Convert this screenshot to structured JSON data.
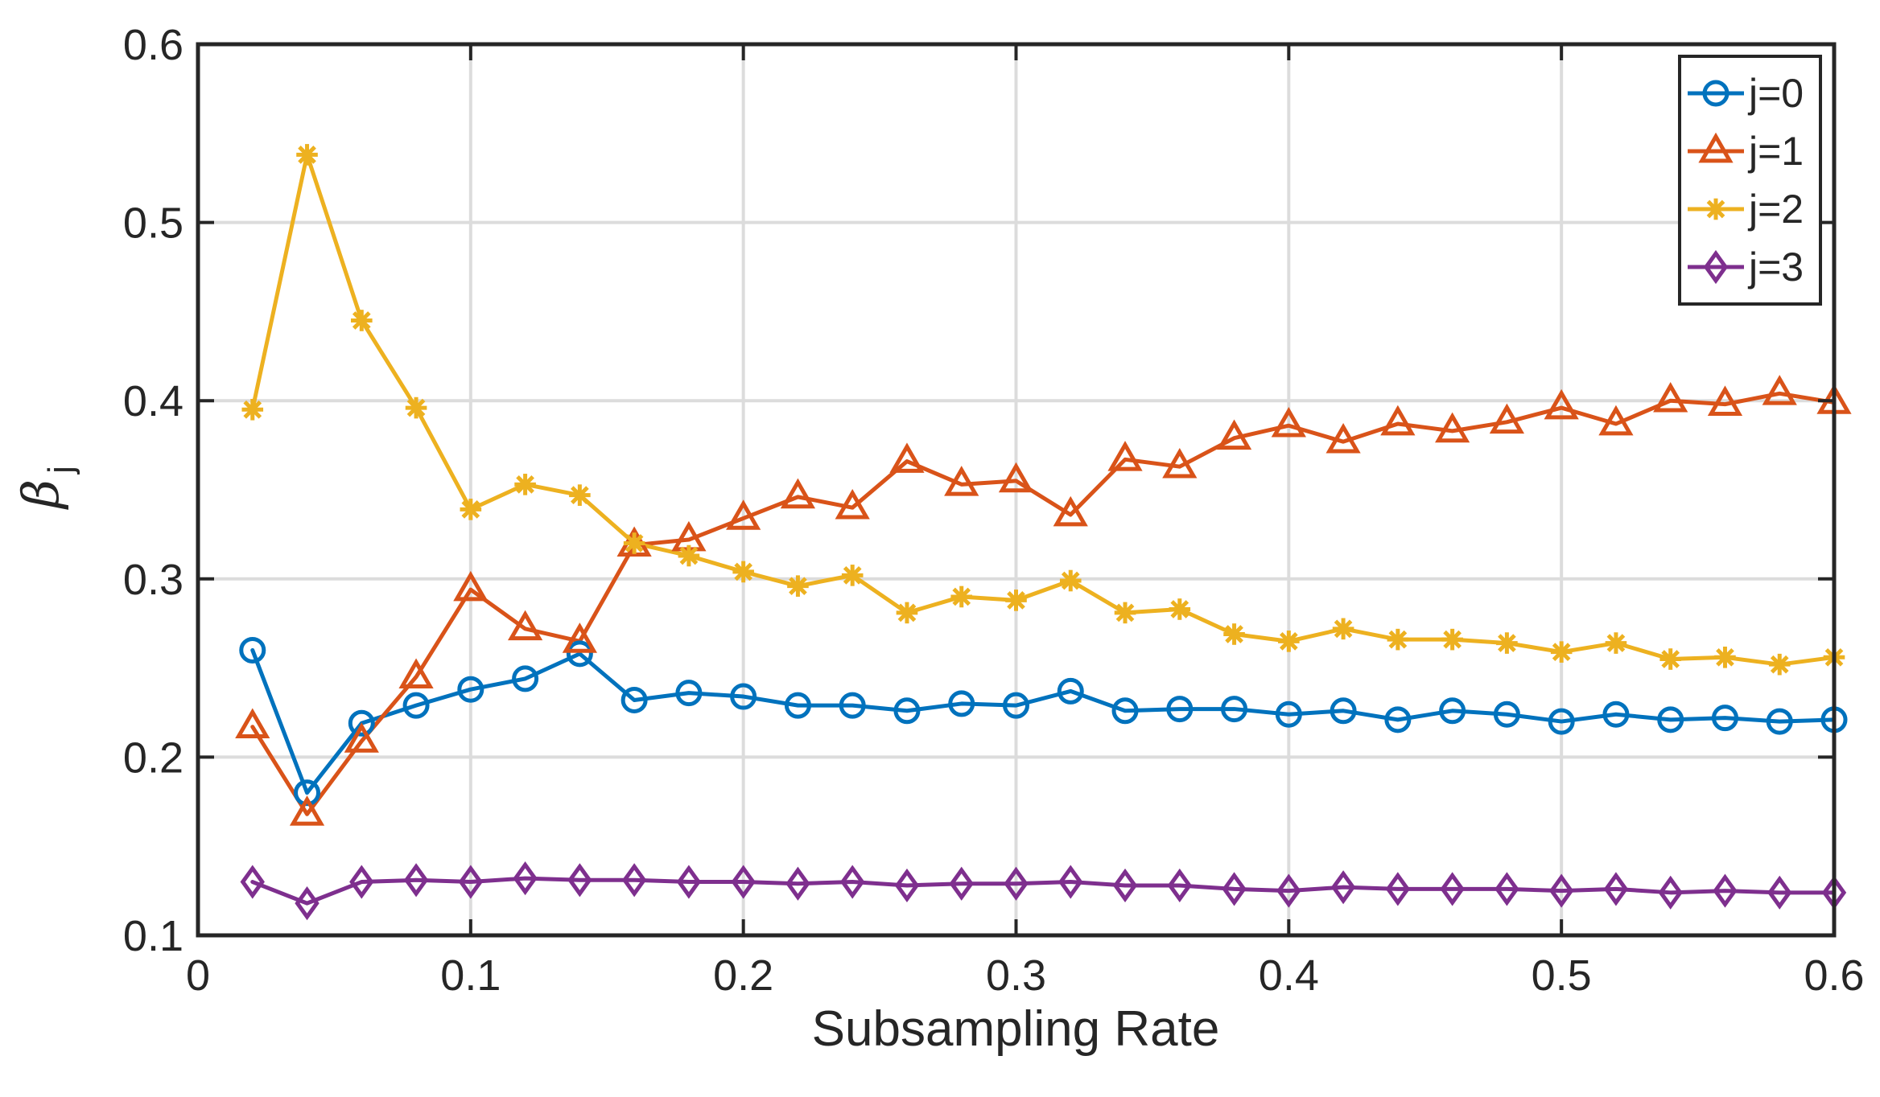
{
  "chart_data": {
    "type": "line",
    "xlabel": "Subsampling Rate",
    "ylabel_symbol": "β",
    "ylabel_subscript": "j",
    "xlim": [
      0,
      0.6
    ],
    "ylim": [
      0.1,
      0.6
    ],
    "xticks": [
      "0",
      "0.1",
      "0.2",
      "0.3",
      "0.4",
      "0.5",
      "0.6"
    ],
    "yticks": [
      "0.1",
      "0.2",
      "0.3",
      "0.4",
      "0.5",
      "0.6"
    ],
    "grid": true,
    "legend_position": "top-right",
    "x": [
      0.02,
      0.04,
      0.06,
      0.08,
      0.1,
      0.12,
      0.14,
      0.16,
      0.18,
      0.2,
      0.22,
      0.24,
      0.26,
      0.28,
      0.3,
      0.32,
      0.34,
      0.36,
      0.38,
      0.4,
      0.42,
      0.44,
      0.46,
      0.48,
      0.5,
      0.52,
      0.54,
      0.56,
      0.58,
      0.6
    ],
    "series": [
      {
        "name": "j=0",
        "color": "#0072BD",
        "marker": "circle",
        "values": [
          0.26,
          0.18,
          0.219,
          0.229,
          0.238,
          0.244,
          0.258,
          0.232,
          0.236,
          0.234,
          0.229,
          0.229,
          0.226,
          0.23,
          0.229,
          0.237,
          0.226,
          0.227,
          0.227,
          0.224,
          0.226,
          0.221,
          0.226,
          0.224,
          0.22,
          0.224,
          0.221,
          0.222,
          0.22,
          0.221
        ]
      },
      {
        "name": "j=1",
        "color": "#D95319",
        "marker": "triangle",
        "values": [
          0.217,
          0.168,
          0.209,
          0.245,
          0.294,
          0.272,
          0.265,
          0.319,
          0.322,
          0.334,
          0.346,
          0.34,
          0.366,
          0.353,
          0.355,
          0.336,
          0.367,
          0.363,
          0.379,
          0.386,
          0.377,
          0.387,
          0.383,
          0.388,
          0.396,
          0.387,
          0.4,
          0.398,
          0.404,
          0.399
        ]
      },
      {
        "name": "j=2",
        "color": "#EDB120",
        "marker": "asterisk",
        "values": [
          0.395,
          0.538,
          0.445,
          0.396,
          0.339,
          0.353,
          0.347,
          0.32,
          0.313,
          0.304,
          0.296,
          0.302,
          0.281,
          0.29,
          0.288,
          0.299,
          0.281,
          0.283,
          0.269,
          0.265,
          0.272,
          0.266,
          0.266,
          0.264,
          0.259,
          0.264,
          0.255,
          0.256,
          0.252,
          0.256
        ]
      },
      {
        "name": "j=3",
        "color": "#7E2F8E",
        "marker": "diamond",
        "values": [
          0.13,
          0.118,
          0.13,
          0.131,
          0.13,
          0.132,
          0.131,
          0.131,
          0.13,
          0.13,
          0.129,
          0.13,
          0.128,
          0.129,
          0.129,
          0.13,
          0.128,
          0.128,
          0.126,
          0.125,
          0.127,
          0.126,
          0.126,
          0.126,
          0.125,
          0.126,
          0.124,
          0.125,
          0.124,
          0.124
        ]
      }
    ]
  }
}
